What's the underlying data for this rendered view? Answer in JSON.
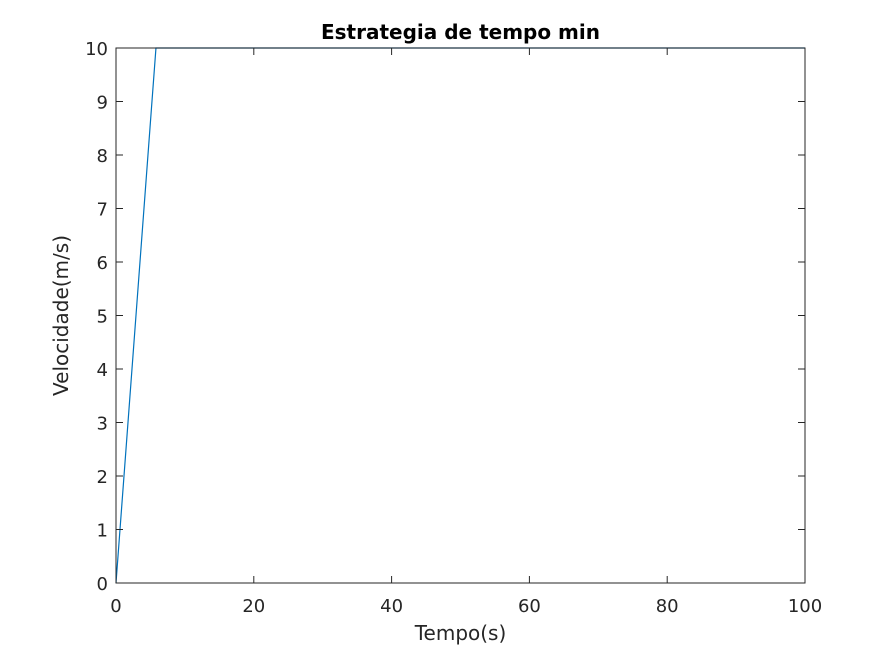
{
  "chart_data": {
    "type": "line",
    "title": "Estrategia de tempo min",
    "xlabel": "Tempo(s)",
    "ylabel": "Velocidade(m/s)",
    "xlim": [
      0,
      100
    ],
    "ylim": [
      0,
      10
    ],
    "xticks": [
      0,
      20,
      40,
      60,
      80,
      100
    ],
    "yticks": [
      0,
      1,
      2,
      3,
      4,
      5,
      6,
      7,
      8,
      9,
      10
    ],
    "grid": false,
    "series": [
      {
        "color": "#0072BD",
        "x": [
          0,
          5.8,
          100
        ],
        "y": [
          0,
          10,
          10
        ]
      }
    ]
  }
}
